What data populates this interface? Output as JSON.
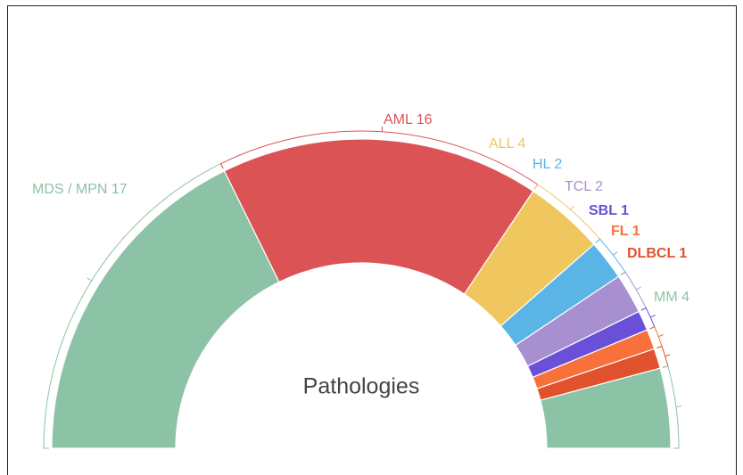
{
  "chart_data": {
    "type": "semi-donut",
    "title": "Pathologies",
    "categories": [
      "MDS / MPN",
      "AML",
      "ALL",
      "HL",
      "TCL",
      "SBL",
      "FL",
      "DLBCL",
      "MM"
    ],
    "values": [
      17,
      16,
      4,
      2,
      2,
      1,
      1,
      1,
      4
    ],
    "colors": [
      "#8cc3a6",
      "#dc5356",
      "#efc75e",
      "#5ab5e6",
      "#a88fd0",
      "#6a4fd8",
      "#f8713a",
      "#e0522e",
      "#8cc3a6"
    ]
  }
}
